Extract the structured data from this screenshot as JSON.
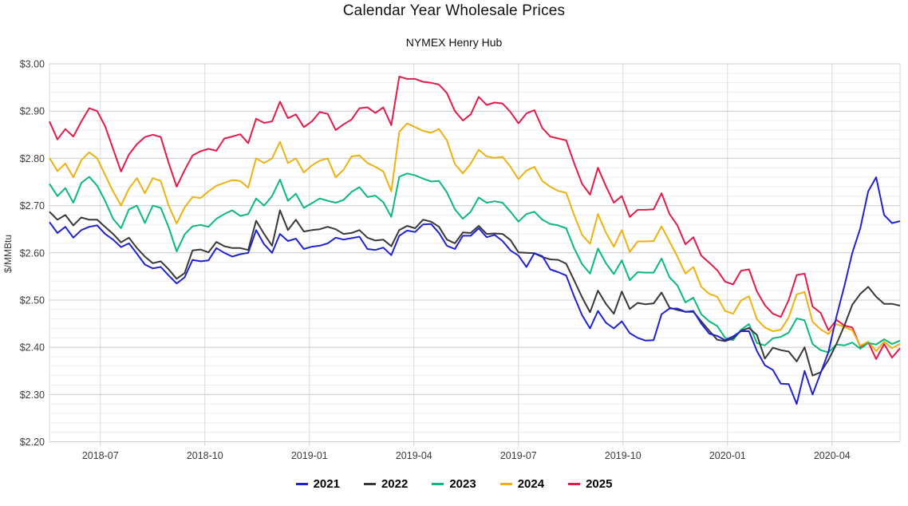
{
  "chart": {
    "title": "Calendar Year Wholesale Prices",
    "subtitle": "NYMEX Henry Hub"
  },
  "chart_data": {
    "type": "line",
    "title": "Calendar Year Wholesale Prices",
    "subtitle": "NYMEX Henry Hub",
    "ylabel": "$/MMBtu",
    "legend_position": "bottom",
    "grid": true,
    "x_axis": {
      "unit": "decimal_year",
      "x_start": 2018.3783,
      "x_step": 0.019012,
      "points": 108,
      "tick_values": [
        2018.5,
        2018.75,
        2019.0,
        2019.25,
        2019.5,
        2019.75,
        2020.0,
        2020.25
      ],
      "tick_labels": [
        "2018-07",
        "2018-10",
        "2019-01",
        "2019-04",
        "2019-07",
        "2019-10",
        "2020-01",
        "2020-04"
      ]
    },
    "y_axis": {
      "label": "$/MMBtu",
      "min": 2.2,
      "max": 3.0,
      "tick_values": [
        2.2,
        2.3,
        2.4,
        2.5,
        2.6,
        2.7,
        2.8,
        2.9,
        3.0
      ],
      "tick_labels": [
        "$2.20",
        "$2.30",
        "$2.40",
        "$2.50",
        "$2.60",
        "$2.70",
        "$2.80",
        "$2.90",
        "$3.00"
      ],
      "minor_step": 0.02
    },
    "colors": {
      "grid_minor": "#ececec",
      "grid_major": "#c9cdd2",
      "grid_vertical": "#d4dae3",
      "tick_text": "#3b3b3b"
    },
    "series": [
      {
        "name": "2021",
        "color": "#2022d2",
        "values": [
          2.665,
          2.642,
          2.655,
          2.632,
          2.648,
          2.655,
          2.658,
          2.64,
          2.628,
          2.612,
          2.62,
          2.598,
          2.575,
          2.567,
          2.57,
          2.552,
          2.535,
          2.548,
          2.585,
          2.582,
          2.584,
          2.61,
          2.6,
          2.592,
          2.597,
          2.6,
          2.648,
          2.618,
          2.6,
          2.64,
          2.625,
          2.63,
          2.608,
          2.613,
          2.615,
          2.62,
          2.632,
          2.628,
          2.631,
          2.634,
          2.608,
          2.606,
          2.611,
          2.595,
          2.636,
          2.647,
          2.644,
          2.66,
          2.661,
          2.642,
          2.615,
          2.608,
          2.636,
          2.636,
          2.652,
          2.633,
          2.638,
          2.625,
          2.605,
          2.594,
          2.57,
          2.599,
          2.593,
          2.565,
          2.559,
          2.552,
          2.508,
          2.468,
          2.44,
          2.477,
          2.452,
          2.44,
          2.455,
          2.43,
          2.42,
          2.414,
          2.415,
          2.47,
          2.482,
          2.482,
          2.475,
          2.477,
          2.45,
          2.429,
          2.424,
          2.415,
          2.423,
          2.434,
          2.434,
          2.392,
          2.362,
          2.352,
          2.323,
          2.322,
          2.28,
          2.35,
          2.3,
          2.345,
          2.39,
          2.465,
          2.53,
          2.6,
          2.652,
          2.73,
          2.76,
          2.68,
          2.663,
          2.667
        ]
      },
      {
        "name": "2022",
        "color": "#383838",
        "values": [
          2.687,
          2.67,
          2.68,
          2.658,
          2.675,
          2.67,
          2.67,
          2.655,
          2.64,
          2.622,
          2.632,
          2.61,
          2.592,
          2.578,
          2.582,
          2.565,
          2.545,
          2.557,
          2.605,
          2.607,
          2.601,
          2.623,
          2.614,
          2.61,
          2.61,
          2.606,
          2.668,
          2.64,
          2.615,
          2.69,
          2.648,
          2.67,
          2.645,
          2.648,
          2.65,
          2.655,
          2.65,
          2.64,
          2.642,
          2.648,
          2.632,
          2.626,
          2.628,
          2.614,
          2.648,
          2.657,
          2.652,
          2.67,
          2.666,
          2.655,
          2.628,
          2.62,
          2.643,
          2.642,
          2.657,
          2.64,
          2.641,
          2.64,
          2.627,
          2.601,
          2.6,
          2.599,
          2.591,
          2.586,
          2.585,
          2.577,
          2.542,
          2.506,
          2.474,
          2.52,
          2.492,
          2.471,
          2.518,
          2.481,
          2.494,
          2.491,
          2.493,
          2.516,
          2.484,
          2.479,
          2.475,
          2.475,
          2.455,
          2.435,
          2.416,
          2.413,
          2.419,
          2.435,
          2.441,
          2.426,
          2.376,
          2.399,
          2.394,
          2.391,
          2.37,
          2.4,
          2.34,
          2.347,
          2.373,
          2.407,
          2.446,
          2.49,
          2.513,
          2.528,
          2.507,
          2.492,
          2.492,
          2.488
        ]
      },
      {
        "name": "2023",
        "color": "#0cb87b",
        "values": [
          2.746,
          2.72,
          2.737,
          2.706,
          2.748,
          2.761,
          2.742,
          2.71,
          2.672,
          2.652,
          2.692,
          2.7,
          2.663,
          2.7,
          2.695,
          2.654,
          2.603,
          2.639,
          2.656,
          2.659,
          2.655,
          2.672,
          2.682,
          2.69,
          2.678,
          2.682,
          2.715,
          2.7,
          2.72,
          2.755,
          2.71,
          2.725,
          2.695,
          2.705,
          2.715,
          2.71,
          2.706,
          2.712,
          2.729,
          2.739,
          2.718,
          2.721,
          2.707,
          2.676,
          2.761,
          2.768,
          2.764,
          2.757,
          2.751,
          2.752,
          2.728,
          2.692,
          2.672,
          2.687,
          2.717,
          2.706,
          2.709,
          2.706,
          2.687,
          2.666,
          2.682,
          2.687,
          2.67,
          2.661,
          2.658,
          2.652,
          2.61,
          2.576,
          2.556,
          2.609,
          2.578,
          2.555,
          2.584,
          2.542,
          2.559,
          2.558,
          2.558,
          2.588,
          2.548,
          2.531,
          2.495,
          2.505,
          2.47,
          2.455,
          2.445,
          2.42,
          2.415,
          2.437,
          2.449,
          2.409,
          2.404,
          2.419,
          2.422,
          2.431,
          2.461,
          2.457,
          2.407,
          2.394,
          2.389,
          2.406,
          2.404,
          2.41,
          2.397,
          2.409,
          2.406,
          2.417,
          2.407,
          2.414
        ]
      },
      {
        "name": "2024",
        "color": "#eeb111",
        "values": [
          2.801,
          2.773,
          2.789,
          2.76,
          2.796,
          2.813,
          2.8,
          2.765,
          2.73,
          2.7,
          2.736,
          2.758,
          2.726,
          2.758,
          2.752,
          2.7,
          2.662,
          2.696,
          2.718,
          2.716,
          2.73,
          2.742,
          2.748,
          2.754,
          2.752,
          2.738,
          2.8,
          2.79,
          2.8,
          2.835,
          2.79,
          2.8,
          2.77,
          2.785,
          2.795,
          2.8,
          2.76,
          2.776,
          2.804,
          2.806,
          2.79,
          2.782,
          2.772,
          2.73,
          2.856,
          2.874,
          2.866,
          2.858,
          2.854,
          2.862,
          2.838,
          2.788,
          2.768,
          2.789,
          2.818,
          2.804,
          2.801,
          2.803,
          2.782,
          2.756,
          2.774,
          2.782,
          2.752,
          2.74,
          2.731,
          2.727,
          2.68,
          2.638,
          2.619,
          2.682,
          2.643,
          2.613,
          2.648,
          2.602,
          2.624,
          2.624,
          2.625,
          2.656,
          2.624,
          2.592,
          2.556,
          2.57,
          2.528,
          2.513,
          2.507,
          2.477,
          2.471,
          2.499,
          2.508,
          2.459,
          2.442,
          2.434,
          2.437,
          2.463,
          2.512,
          2.517,
          2.454,
          2.438,
          2.428,
          2.449,
          2.443,
          2.436,
          2.403,
          2.412,
          2.392,
          2.412,
          2.398,
          2.407
        ]
      },
      {
        "name": "2025",
        "color": "#e41a4a",
        "values": [
          2.878,
          2.84,
          2.862,
          2.846,
          2.878,
          2.906,
          2.9,
          2.868,
          2.82,
          2.772,
          2.808,
          2.83,
          2.845,
          2.85,
          2.845,
          2.79,
          2.74,
          2.775,
          2.806,
          2.815,
          2.82,
          2.816,
          2.842,
          2.846,
          2.851,
          2.832,
          2.884,
          2.875,
          2.878,
          2.92,
          2.885,
          2.893,
          2.866,
          2.878,
          2.898,
          2.894,
          2.86,
          2.872,
          2.882,
          2.906,
          2.908,
          2.896,
          2.908,
          2.87,
          2.973,
          2.968,
          2.968,
          2.962,
          2.96,
          2.956,
          2.938,
          2.9,
          2.88,
          2.893,
          2.93,
          2.913,
          2.918,
          2.916,
          2.898,
          2.874,
          2.895,
          2.902,
          2.864,
          2.846,
          2.842,
          2.838,
          2.79,
          2.746,
          2.723,
          2.78,
          2.741,
          2.706,
          2.72,
          2.676,
          2.691,
          2.691,
          2.692,
          2.726,
          2.682,
          2.658,
          2.618,
          2.633,
          2.594,
          2.579,
          2.563,
          2.539,
          2.533,
          2.562,
          2.565,
          2.518,
          2.489,
          2.471,
          2.464,
          2.5,
          2.553,
          2.556,
          2.486,
          2.473,
          2.436,
          2.458,
          2.446,
          2.442,
          2.401,
          2.411,
          2.375,
          2.407,
          2.378,
          2.398
        ]
      }
    ]
  }
}
